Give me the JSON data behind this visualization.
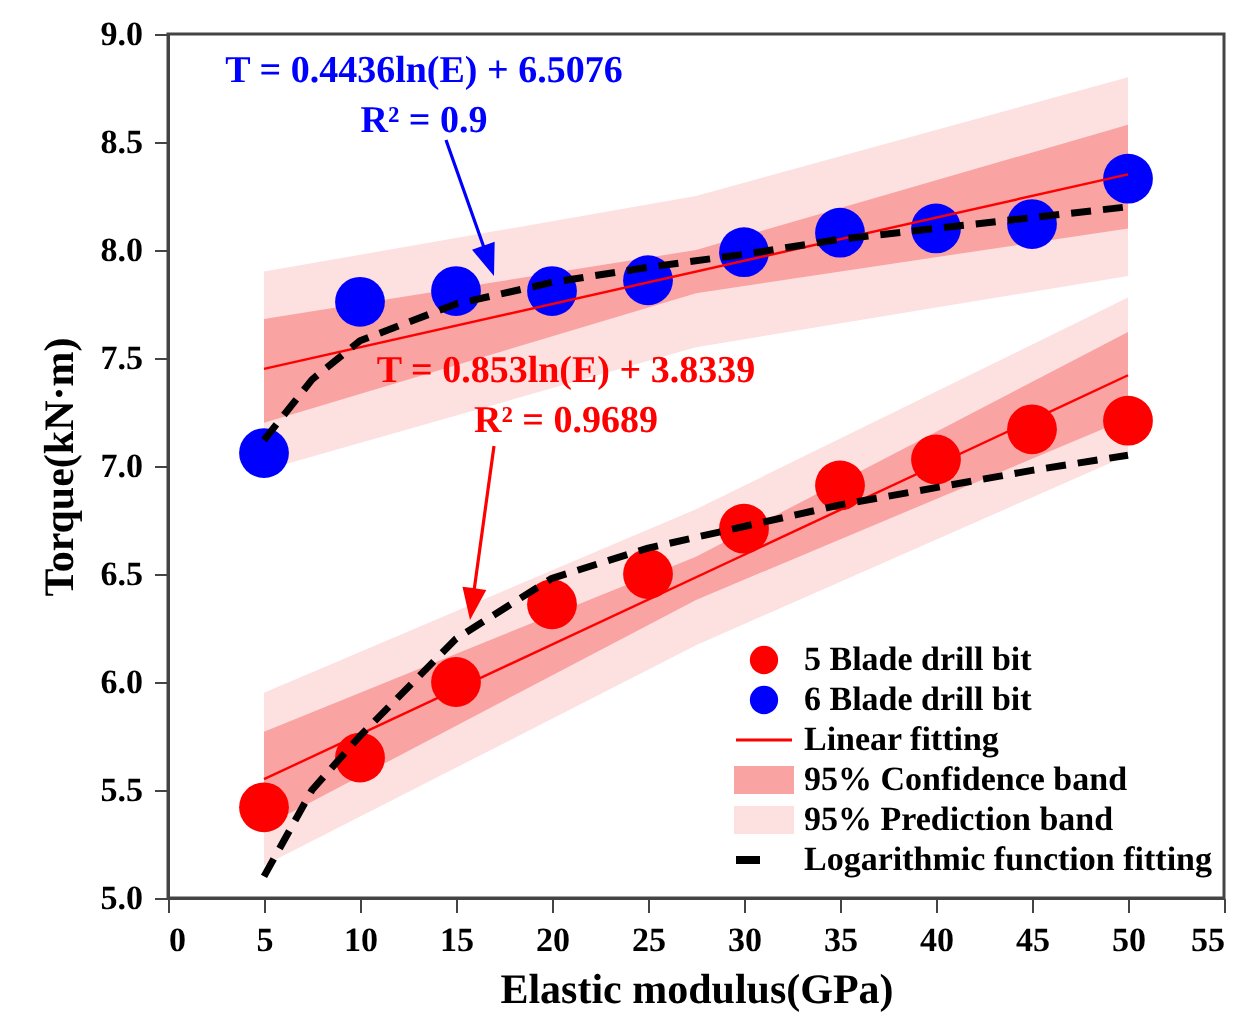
{
  "chart_data": {
    "type": "scatter",
    "xlabel": "Elastic modulus(GPa)",
    "ylabel": "Torque(kN·m)",
    "xlim": [
      0,
      55
    ],
    "xticks": [
      0,
      5,
      10,
      15,
      20,
      25,
      30,
      35,
      40,
      45,
      50,
      55
    ],
    "ylim": [
      5,
      9
    ],
    "yticks": [
      {
        "value": 5,
        "label": "5.0"
      },
      {
        "value": 5.5,
        "label": "5.5"
      },
      {
        "value": 6,
        "label": "6.0"
      },
      {
        "value": 6.5,
        "label": "6.5"
      },
      {
        "value": 7,
        "label": "7.0"
      },
      {
        "value": 7.5,
        "label": "7.5"
      },
      {
        "value": 8,
        "label": "8.0"
      },
      {
        "value": 8.5,
        "label": "8.5"
      },
      {
        "value": 9,
        "label": "9.0"
      }
    ],
    "grid": false,
    "legend": "bottom right",
    "series": [
      {
        "name": "5 Blade drill bit",
        "marker": "circle",
        "color": "#ff0000",
        "x": [
          5,
          10,
          15,
          20,
          25,
          30,
          35,
          40,
          45,
          50
        ],
        "values": [
          5.42,
          5.65,
          6.0,
          6.36,
          6.5,
          6.71,
          6.91,
          7.03,
          7.17,
          7.21
        ]
      },
      {
        "name": "6 Blade drill bit",
        "marker": "circle",
        "color": "#0000ff",
        "x": [
          5,
          10,
          15,
          20,
          25,
          30,
          35,
          40,
          45,
          50
        ],
        "values": [
          7.06,
          7.76,
          7.81,
          7.81,
          7.86,
          7.99,
          8.08,
          8.1,
          8.12,
          8.33
        ]
      },
      {
        "name": "Linear fitting",
        "type": "line",
        "color": "#ff0000",
        "line_style": "solid",
        "x": [
          5,
          50
        ],
        "values": [
          5.55,
          7.42
        ]
      },
      {
        "type": "line",
        "color": "#ff0000",
        "line_style": "solid",
        "x": [
          5,
          50
        ],
        "values": [
          7.45,
          8.35
        ]
      },
      {
        "name": "95% Confidence band",
        "type": "area",
        "color": "#f9a3a3",
        "x": [
          5,
          27.5,
          50
        ],
        "values": [
          null,
          null,
          null
        ],
        "lower": [
          5.33,
          6.38,
          7.22
        ],
        "upper": [
          5.77,
          6.58,
          7.62
        ]
      },
      {
        "type": "area",
        "color": "#f9a3a3",
        "x": [
          5,
          27.5,
          50
        ],
        "values": [
          null,
          null,
          null
        ],
        "lower": [
          7.2,
          7.8,
          8.1
        ],
        "upper": [
          7.68,
          8.0,
          8.58
        ]
      },
      {
        "name": "95% Prediction band",
        "type": "area",
        "color": "#fde0e0",
        "x": [
          5,
          27.5,
          50
        ],
        "values": [
          null,
          null,
          null
        ],
        "lower": [
          5.15,
          6.17,
          7.05
        ],
        "upper": [
          5.95,
          6.8,
          7.78
        ]
      },
      {
        "type": "area",
        "color": "#fde0e0",
        "x": [
          5,
          27.5,
          50
        ],
        "values": [
          null,
          null,
          null
        ],
        "lower": [
          6.98,
          7.55,
          7.88
        ],
        "upper": [
          7.9,
          8.25,
          8.8
        ]
      },
      {
        "name": "Logarithmic function fitting",
        "type": "line",
        "color": "#000000",
        "line_style": "dashed",
        "x": [
          5,
          7.5,
          10,
          15,
          20,
          25,
          30,
          35,
          40,
          45,
          50
        ],
        "values": [
          5.1,
          5.5,
          5.75,
          6.2,
          6.48,
          6.62,
          6.72,
          6.82,
          6.9,
          6.98,
          7.05
        ]
      },
      {
        "type": "line",
        "color": "#000000",
        "line_style": "dashed",
        "x": [
          5,
          7.5,
          10,
          15,
          20,
          25,
          30,
          35,
          40,
          45,
          50
        ],
        "values": [
          7.12,
          7.4,
          7.58,
          7.75,
          7.85,
          7.92,
          7.98,
          8.05,
          8.1,
          8.15,
          8.2
        ]
      }
    ],
    "annotations": [
      "T = 0.4436ln(E) + 6.5076\nR² = 0.9",
      "T = 0.853ln(E) + 3.8339\nR² = 0.9689"
    ]
  }
}
